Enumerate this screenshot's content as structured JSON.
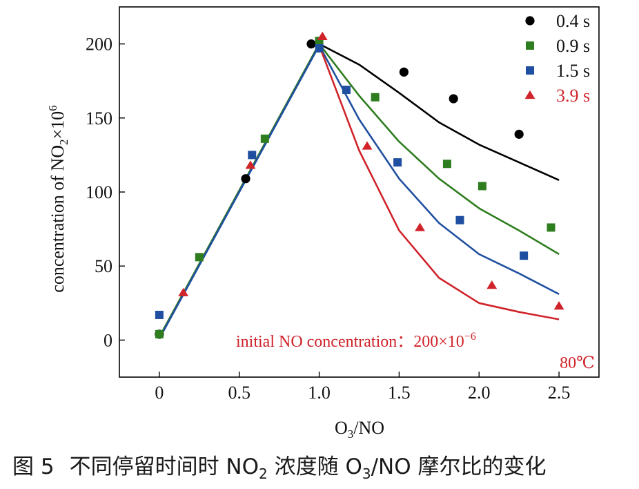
{
  "chart_data": {
    "type": "scatter",
    "xlabel_parts": [
      "O",
      "3",
      "/NO"
    ],
    "ylabel_parts": [
      "concentration of NO",
      "2",
      "×10",
      "6"
    ],
    "xlim": [
      -0.25,
      2.75
    ],
    "ylim": [
      -25,
      225
    ],
    "xticks": [
      0,
      0.5,
      1.0,
      1.5,
      2.0,
      2.5
    ],
    "xtick_labels": [
      "0",
      "0.5",
      "1.0",
      "1.5",
      "2.0",
      "2.5"
    ],
    "yticks": [
      0,
      50,
      100,
      150,
      200
    ],
    "ytick_labels": [
      "0",
      "50",
      "100",
      "150",
      "200"
    ],
    "legend_position": "top-right",
    "series": [
      {
        "name": "0.4 s",
        "color": "#000000",
        "marker": "circle",
        "points": [
          [
            0,
            4
          ],
          [
            0.54,
            109
          ],
          [
            0.95,
            200
          ],
          [
            1.53,
            181
          ],
          [
            1.84,
            163
          ],
          [
            2.25,
            139
          ]
        ],
        "line": [
          [
            0,
            2
          ],
          [
            1.0,
            200
          ],
          [
            1.25,
            186
          ],
          [
            1.5,
            167
          ],
          [
            1.75,
            147
          ],
          [
            2.0,
            132
          ],
          [
            2.25,
            120
          ],
          [
            2.5,
            108
          ]
        ]
      },
      {
        "name": "0.9 s",
        "color": "#2e7d1f",
        "marker": "square",
        "points": [
          [
            0,
            4
          ],
          [
            0.25,
            56
          ],
          [
            0.66,
            136
          ],
          [
            1.0,
            202
          ],
          [
            1.35,
            164
          ],
          [
            1.8,
            119
          ],
          [
            2.02,
            104
          ],
          [
            2.45,
            76
          ]
        ],
        "line": [
          [
            0,
            2
          ],
          [
            1.0,
            200
          ],
          [
            1.25,
            165
          ],
          [
            1.5,
            134
          ],
          [
            1.75,
            109
          ],
          [
            2.0,
            89
          ],
          [
            2.25,
            74
          ],
          [
            2.5,
            58
          ]
        ]
      },
      {
        "name": "1.5 s",
        "color": "#1f4fa0",
        "marker": "square",
        "points": [
          [
            0,
            17
          ],
          [
            0.58,
            125
          ],
          [
            1.0,
            197
          ],
          [
            1.17,
            169
          ],
          [
            1.49,
            120
          ],
          [
            1.88,
            81
          ],
          [
            2.28,
            57
          ]
        ],
        "line": [
          [
            0,
            1
          ],
          [
            1.0,
            199
          ],
          [
            1.25,
            149
          ],
          [
            1.5,
            109
          ],
          [
            1.75,
            79
          ],
          [
            2.0,
            58
          ],
          [
            2.25,
            45
          ],
          [
            2.5,
            31
          ]
        ]
      },
      {
        "name": "3.9 s",
        "color": "#d0232a",
        "marker": "triangle",
        "points": [
          [
            0.15,
            32
          ],
          [
            0.57,
            118
          ],
          [
            1.02,
            205
          ],
          [
            1.3,
            131
          ],
          [
            1.63,
            76
          ],
          [
            2.08,
            37
          ],
          [
            2.5,
            23
          ]
        ],
        "line": [
          [
            1.0,
            199
          ],
          [
            1.25,
            128
          ],
          [
            1.5,
            74
          ],
          [
            1.75,
            42
          ],
          [
            2.0,
            25
          ],
          [
            2.25,
            19
          ],
          [
            2.5,
            14
          ]
        ]
      }
    ],
    "annotation_parts": [
      "initial NO concentration：200×10",
      "−6"
    ],
    "annotation_color": "#d0232a",
    "temperature_label": "80℃"
  },
  "caption": {
    "number": "图 5",
    "text_before": "不同停留时间时 NO",
    "sub1": "2",
    "text_middle": " 浓度随 O",
    "sub2": "3",
    "text_after": "/NO 摩尔比的变化"
  }
}
